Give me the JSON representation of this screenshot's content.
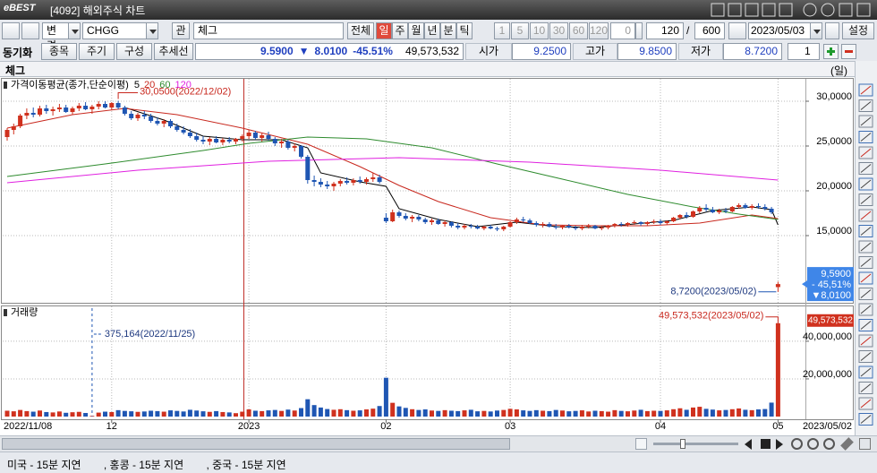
{
  "window": {
    "logo": "eBEST",
    "title": "[4092] 해외주식 차트"
  },
  "toolbar": {
    "change": "변경",
    "symbol": "CHGG",
    "rel": "관",
    "name": "체그",
    "periods": [
      "전체",
      "일",
      "주",
      "월",
      "년",
      "분",
      "틱"
    ],
    "intervals": [
      "1",
      "5",
      "10",
      "30",
      "60",
      "120"
    ],
    "spin": "0",
    "count": "120",
    "slash": "/",
    "total": "600",
    "date": "2023/05/03",
    "settings": "설정"
  },
  "row2": {
    "sync": "동기화",
    "buttons": [
      "종목",
      "주기",
      "구성",
      "추세선"
    ],
    "price": "9.5900",
    "arrow": "▼",
    "diff": "8.0100",
    "rate": "-45.51%",
    "volume": "49,573,532",
    "open_label": "시가",
    "open": "9.2500",
    "high_label": "고가",
    "high": "9.8500",
    "low_label": "저가",
    "low": "8.7200",
    "layout": "1"
  },
  "header": {
    "name": "체그",
    "unit": "(일)"
  },
  "chart_data": [
    {
      "type": "candlestick",
      "title": "가격이동평균(종가,단순이평)",
      "up_color": "#d0311e",
      "down_color": "#1f56b3",
      "grid": true,
      "ylim": [
        7.5,
        32.5
      ],
      "yticks": [
        {
          "value": 15,
          "label": "15,0000"
        },
        {
          "value": 20,
          "label": "20,0000"
        },
        {
          "value": 25,
          "label": "25,0000"
        },
        {
          "value": 30,
          "label": "30,0000"
        }
      ],
      "ohlc": [
        [
          26,
          27,
          25.6,
          26.8
        ],
        [
          26.8,
          27.5,
          26.3,
          27.2
        ],
        [
          27.2,
          28.6,
          27,
          28.4
        ],
        [
          28.4,
          29.2,
          28,
          28.7
        ],
        [
          28.7,
          29.3,
          28.2,
          28.5
        ],
        [
          28.5,
          29.5,
          28.3,
          29.2
        ],
        [
          29.2,
          29.6,
          28.6,
          28.9
        ],
        [
          28.9,
          29.4,
          28.4,
          29.1
        ],
        [
          29.1,
          29.7,
          28.8,
          29.3
        ],
        [
          29.3,
          29.6,
          28.7,
          28.8
        ],
        [
          28.8,
          29.4,
          28.5,
          29.2
        ],
        [
          29.2,
          29.8,
          28.9,
          29.5
        ],
        [
          29.5,
          29.9,
          29,
          29.1
        ],
        [
          29.1,
          29.6,
          28.6,
          29.4
        ],
        [
          29.4,
          30,
          29.1,
          29.7
        ],
        [
          29.7,
          30,
          29.2,
          29.3
        ],
        [
          29.3,
          29.9,
          29,
          29.8
        ],
        [
          29.8,
          30.05,
          29.1,
          29.3
        ],
        [
          29.3,
          29.5,
          28.4,
          28.6
        ],
        [
          28.6,
          28.9,
          27.9,
          28.1
        ],
        [
          28.1,
          28.7,
          27.8,
          28.5
        ],
        [
          28.5,
          28.9,
          28,
          28.3
        ],
        [
          28.3,
          28.6,
          27.6,
          27.8
        ],
        [
          27.8,
          28.2,
          27.3,
          27.5
        ],
        [
          27.5,
          28,
          27.1,
          27.8
        ],
        [
          27.8,
          28,
          27,
          27.2
        ],
        [
          27.2,
          27.5,
          26.6,
          26.8
        ],
        [
          26.8,
          27.2,
          26.3,
          26.5
        ],
        [
          26.5,
          26.9,
          25.9,
          26.1
        ],
        [
          26.1,
          26.5,
          25.5,
          25.7
        ],
        [
          25.7,
          26.1,
          25.2,
          25.5
        ],
        [
          25.5,
          26,
          25.1,
          25.8
        ],
        [
          25.8,
          26.1,
          25.3,
          25.4
        ],
        [
          25.4,
          25.9,
          25.1,
          25.7
        ],
        [
          25.7,
          26,
          25.3,
          25.5
        ],
        [
          25.5,
          25.9,
          25.2,
          25.8
        ],
        [
          25.8,
          26.3,
          25.5,
          26.1
        ],
        [
          26.1,
          26.8,
          25.8,
          26.5
        ],
        [
          26.5,
          26.7,
          25.7,
          25.9
        ],
        [
          25.9,
          26.4,
          25.5,
          26.2
        ],
        [
          26.2,
          26.6,
          25.6,
          25.8
        ],
        [
          25.8,
          26,
          25,
          25.3
        ],
        [
          25.3,
          25.8,
          24.8,
          25.5
        ],
        [
          25.5,
          25.7,
          24.6,
          24.8
        ],
        [
          24.8,
          25.3,
          24.4,
          25
        ],
        [
          25,
          25.1,
          23.6,
          23.8
        ],
        [
          23.8,
          24,
          20.8,
          21.2
        ],
        [
          21.2,
          21.7,
          20.5,
          21
        ],
        [
          21,
          21.4,
          20.4,
          20.7
        ],
        [
          20.7,
          21.1,
          20.2,
          20.5
        ],
        [
          20.5,
          21,
          20,
          20.8
        ],
        [
          20.8,
          21.3,
          20.5,
          21.1
        ],
        [
          21.1,
          21.5,
          20.7,
          20.9
        ],
        [
          20.9,
          21.4,
          20.6,
          21.2
        ],
        [
          21.2,
          21.6,
          20.8,
          21
        ],
        [
          21,
          21.5,
          20.7,
          21.3
        ],
        [
          21.3,
          22,
          21,
          21.5
        ],
        [
          21.5,
          21.8,
          20.8,
          21
        ],
        [
          17,
          17.5,
          16.4,
          16.6
        ],
        [
          16.6,
          17.9,
          16.5,
          17.6
        ],
        [
          17.6,
          17.8,
          17,
          17.2
        ],
        [
          17.2,
          17.5,
          16.7,
          16.9
        ],
        [
          16.9,
          17.3,
          16.5,
          17.1
        ],
        [
          17.1,
          17.3,
          16.6,
          16.8
        ],
        [
          16.8,
          17,
          16.3,
          16.5
        ],
        [
          16.5,
          16.9,
          16.2,
          16.7
        ],
        [
          16.7,
          16.9,
          16.2,
          16.3
        ],
        [
          16.3,
          16.7,
          16,
          16.5
        ],
        [
          16.5,
          16.6,
          15.9,
          16.1
        ],
        [
          16.1,
          16.4,
          15.7,
          15.9
        ],
        [
          15.9,
          16.3,
          15.7,
          16.1
        ],
        [
          16.1,
          16.3,
          15.8,
          16
        ],
        [
          16,
          16.2,
          15.7,
          15.8
        ],
        [
          15.8,
          16.1,
          15.6,
          16
        ],
        [
          16,
          16.2,
          15.7,
          15.8
        ],
        [
          15.8,
          16,
          15.5,
          15.7
        ],
        [
          15.7,
          16.1,
          15.5,
          16
        ],
        [
          16,
          16.6,
          15.9,
          16.5
        ],
        [
          16.5,
          17,
          16.3,
          16.8
        ],
        [
          16.8,
          17.1,
          16.5,
          16.7
        ],
        [
          16.7,
          16.9,
          16.3,
          16.4
        ],
        [
          16.4,
          16.6,
          16,
          16.2
        ],
        [
          16.2,
          16.5,
          15.9,
          16.3
        ],
        [
          16.3,
          16.5,
          15.9,
          16
        ],
        [
          16,
          16.3,
          15.7,
          15.9
        ],
        [
          15.9,
          16.2,
          15.7,
          16.1
        ],
        [
          16.1,
          16.3,
          15.8,
          15.9
        ],
        [
          15.9,
          16.1,
          15.6,
          15.8
        ],
        [
          15.8,
          16.2,
          15.6,
          16
        ],
        [
          16,
          16.3,
          15.8,
          16.1
        ],
        [
          16.1,
          16.2,
          15.7,
          15.8
        ],
        [
          15.8,
          16.1,
          15.6,
          15.9
        ],
        [
          15.9,
          16.2,
          15.7,
          16.1
        ],
        [
          16.1,
          16.4,
          15.9,
          16.3
        ],
        [
          16.3,
          16.5,
          16,
          16.2
        ],
        [
          16.2,
          16.5,
          16,
          16.4
        ],
        [
          16.4,
          16.7,
          16.2,
          16.5
        ],
        [
          16.5,
          16.6,
          16.1,
          16.3
        ],
        [
          16.3,
          16.6,
          16.1,
          16.5
        ],
        [
          16.5,
          16.8,
          16.3,
          16.6
        ],
        [
          16.6,
          16.8,
          16.2,
          16.4
        ],
        [
          16.4,
          16.7,
          16.2,
          16.6
        ],
        [
          16.6,
          17.1,
          16.5,
          17
        ],
        [
          17,
          17.4,
          16.8,
          17.3
        ],
        [
          17.3,
          17.6,
          16.9,
          17.1
        ],
        [
          17.1,
          17.8,
          17,
          17.7
        ],
        [
          17.7,
          18.3,
          17.5,
          18.1
        ],
        [
          18.1,
          18.5,
          17.7,
          17.9
        ],
        [
          17.9,
          18.2,
          17.5,
          17.6
        ],
        [
          17.6,
          18,
          17.4,
          17.8
        ],
        [
          17.8,
          18.1,
          17.5,
          17.7
        ],
        [
          17.7,
          18.3,
          17.6,
          18.2
        ],
        [
          18.2,
          18.6,
          18,
          18.4
        ],
        [
          18.4,
          18.6,
          18,
          18.1
        ],
        [
          18.1,
          18.5,
          17.9,
          18.3
        ],
        [
          18.3,
          18.6,
          18,
          18.2
        ],
        [
          18.2,
          18.5,
          17.8,
          18
        ],
        [
          18,
          18.2,
          17.4,
          17.6
        ],
        [
          9.25,
          9.85,
          8.72,
          9.59
        ]
      ],
      "series": [
        {
          "name": "5",
          "color": "#000000",
          "x": [
            18,
            24,
            30,
            36,
            42,
            46,
            48,
            54,
            58,
            60,
            66,
            72,
            78,
            84,
            90,
            96,
            102,
            108,
            114,
            117,
            118
          ],
          "values": [
            29.3,
            27.9,
            26.1,
            25.7,
            25.7,
            24.8,
            22,
            21,
            20.5,
            18,
            16.8,
            16,
            16.5,
            16,
            15.9,
            16.3,
            16.7,
            17.8,
            18.2,
            17.9,
            16.2
          ]
        },
        {
          "name": "20",
          "color": "#c8281e",
          "x": [
            0,
            10,
            18,
            26,
            36,
            46,
            54,
            60,
            66,
            74,
            82,
            90,
            98,
            106,
            114,
            118
          ],
          "values": [
            27,
            28.5,
            29.2,
            28.5,
            27,
            25.2,
            22.7,
            20.6,
            18.8,
            17,
            16.2,
            16.1,
            16.1,
            16.4,
            17.3,
            16.9
          ]
        },
        {
          "name": "60",
          "color": "#2e8b2e",
          "x": [
            0,
            15,
            30,
            37,
            46,
            55,
            65,
            75,
            85,
            95,
            105,
            112,
            118
          ],
          "values": [
            21.6,
            23,
            24.5,
            25.3,
            26,
            25.8,
            24.8,
            23,
            21.3,
            19.6,
            18.2,
            17.4,
            16.8
          ]
        },
        {
          "name": "120",
          "color": "#e020e0",
          "x": [
            0,
            20,
            40,
            60,
            80,
            100,
            118
          ],
          "values": [
            20.9,
            22.3,
            23.3,
            23.7,
            23.2,
            22.3,
            21.2
          ]
        }
      ],
      "high_annotation": {
        "label": "30,0500(2022/12/02)",
        "value": 30.05,
        "x": 17
      },
      "low_annotation": {
        "label": "8,7200(2023/05/02)",
        "value": 8.72,
        "x": 118
      },
      "last": {
        "value": 9.59,
        "label": "9,5900",
        "rate": "- 45,51%",
        "diff": "▼8,0100"
      }
    },
    {
      "type": "bar",
      "title": "거래량",
      "grid": true,
      "ylim": [
        0,
        58500000
      ],
      "yticks": [
        {
          "value": 20000000,
          "label": "20,000,000"
        },
        {
          "value": 40000000,
          "label": "40,000,000"
        }
      ],
      "x_start_label": "2022/11/08",
      "x_end_label": "2023/05/02",
      "categories": [
        null,
        null,
        null,
        null,
        null,
        null,
        null,
        null,
        null,
        null,
        null,
        null,
        null,
        null,
        null,
        null,
        "12",
        null,
        null,
        null,
        null,
        null,
        null,
        null,
        null,
        null,
        null,
        null,
        null,
        null,
        null,
        null,
        null,
        null,
        null,
        null,
        null,
        "2023",
        null,
        null,
        null,
        null,
        null,
        null,
        null,
        null,
        null,
        null,
        null,
        null,
        null,
        null,
        null,
        null,
        null,
        null,
        null,
        null,
        "02",
        null,
        null,
        null,
        null,
        null,
        null,
        null,
        null,
        null,
        null,
        null,
        null,
        null,
        null,
        null,
        null,
        null,
        null,
        "03",
        null,
        null,
        null,
        null,
        null,
        null,
        null,
        null,
        null,
        null,
        null,
        null,
        null,
        null,
        null,
        null,
        null,
        null,
        null,
        null,
        null,
        null,
        "04",
        null,
        null,
        null,
        null,
        null,
        null,
        null,
        null,
        null,
        null,
        null,
        null,
        null,
        null,
        null,
        null,
        null,
        "05"
      ],
      "values": [
        3100000,
        2800000,
        3500000,
        2900000,
        2600000,
        3200000,
        2400000,
        2200000,
        2700000,
        2000000,
        2300000,
        2500000,
        1900000,
        375164,
        2100000,
        2600000,
        2400000,
        3400000,
        3000000,
        2800000,
        2500000,
        2700000,
        3100000,
        2900000,
        2600000,
        3300000,
        3000000,
        2700000,
        3600000,
        3200000,
        2800000,
        2500000,
        2900000,
        2400000,
        2200000,
        1800000,
        2600000,
        3800000,
        3100000,
        2900000,
        3300000,
        3500000,
        3000000,
        3700000,
        3200000,
        4500000,
        9200000,
        6100000,
        4800000,
        4000000,
        3600000,
        3900000,
        3400000,
        3100000,
        3300000,
        3800000,
        4200000,
        5600000,
        20600000,
        7300000,
        5400000,
        4600000,
        3900000,
        3500000,
        3800000,
        3200000,
        3000000,
        3400000,
        3100000,
        2900000,
        3300000,
        3600000,
        2800000,
        3000000,
        2700000,
        3200000,
        3500000,
        4100000,
        3800000,
        3300000,
        3000000,
        3400000,
        3100000,
        2900000,
        3500000,
        3200000,
        2800000,
        3000000,
        3300000,
        2700000,
        3100000,
        2900000,
        2600000,
        3400000,
        3000000,
        2800000,
        3200000,
        3600000,
        2900000,
        3100000,
        3000000,
        3300000,
        3900000,
        4400000,
        3600000,
        4800000,
        5200000,
        4100000,
        3700000,
        3300000,
        3500000,
        3900000,
        4300000,
        3600000,
        3400000,
        3800000,
        4000000,
        7400000,
        49573532
      ],
      "min_annotation": {
        "label": "375,164(2022/11/25)",
        "value": 375164,
        "x": 13
      },
      "max_annotation": {
        "label": "49,573,532(2023/05/02)",
        "value": 49573532,
        "x": 118
      },
      "volume_badge": "49,573,532"
    }
  ],
  "status": {
    "items": [
      "미국 - 15분 지연",
      ", 홍콩 - 15분 지연",
      ", 중국 - 15분 지연"
    ]
  }
}
